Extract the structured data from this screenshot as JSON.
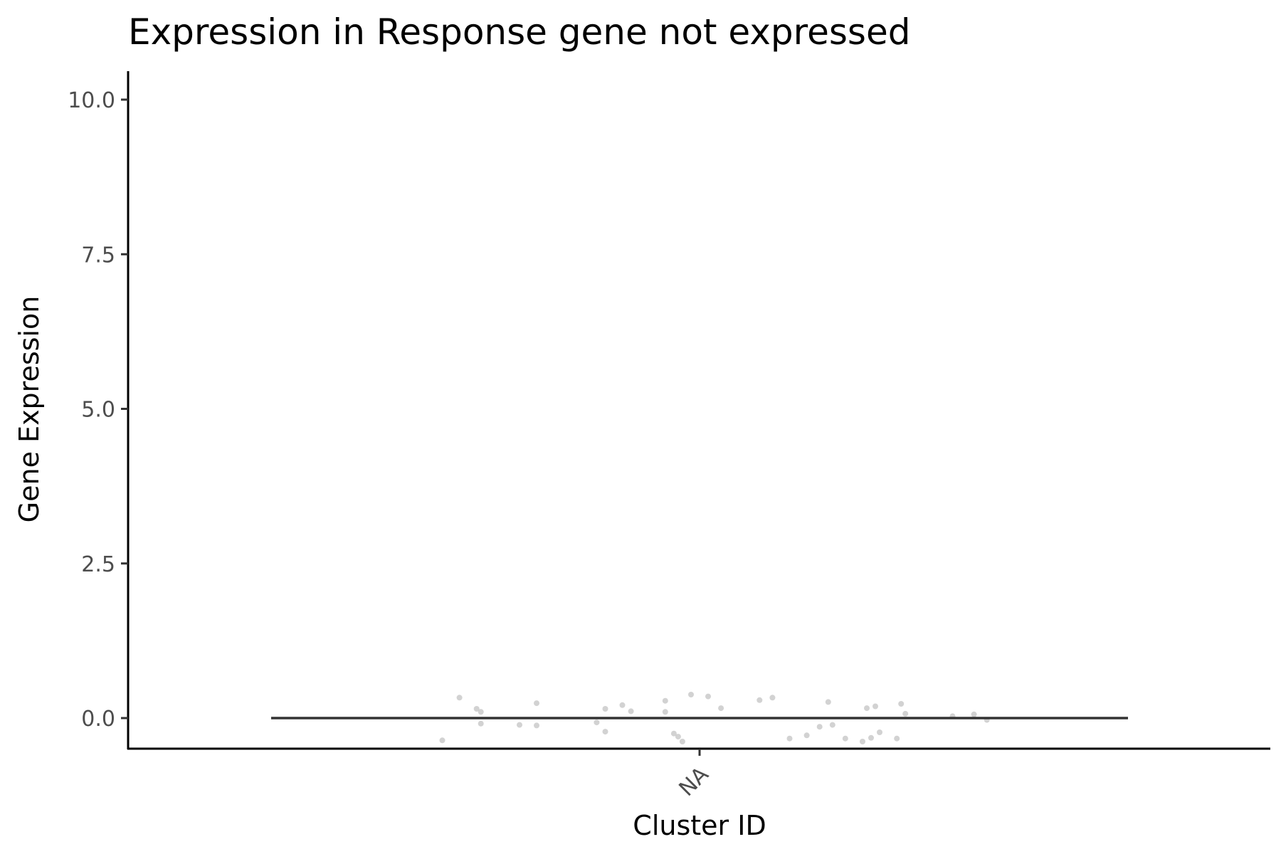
{
  "chart_data": {
    "type": "scatter",
    "title": "Expression in Response gene not expressed",
    "xlabel": "Cluster ID",
    "ylabel": "Gene Expression",
    "categories": [
      "NA"
    ],
    "ylim": [
      -0.5,
      10.5
    ],
    "yticks": [
      "0.0",
      "2.5",
      "5.0",
      "7.5",
      "10.0"
    ],
    "ytick_values": [
      0,
      2.5,
      5,
      7.5,
      10
    ],
    "grid": false,
    "legend": "none",
    "median_line": {
      "category": "NA",
      "value": 0
    },
    "point_color": "#bfbfbf",
    "line_color": "#333333",
    "points": [
      {
        "jitter": -0.3,
        "y": -0.36
      },
      {
        "jitter": -0.28,
        "y": 0.33
      },
      {
        "jitter": -0.26,
        "y": 0.15
      },
      {
        "jitter": -0.255,
        "y": 0.1
      },
      {
        "jitter": -0.255,
        "y": -0.09
      },
      {
        "jitter": -0.21,
        "y": -0.11
      },
      {
        "jitter": -0.19,
        "y": 0.24
      },
      {
        "jitter": -0.19,
        "y": -0.12
      },
      {
        "jitter": -0.12,
        "y": -0.07
      },
      {
        "jitter": -0.11,
        "y": 0.15
      },
      {
        "jitter": -0.11,
        "y": -0.22
      },
      {
        "jitter": -0.09,
        "y": 0.21
      },
      {
        "jitter": -0.08,
        "y": 0.11
      },
      {
        "jitter": -0.04,
        "y": 0.28
      },
      {
        "jitter": -0.04,
        "y": 0.1
      },
      {
        "jitter": -0.03,
        "y": -0.25
      },
      {
        "jitter": -0.025,
        "y": -0.3
      },
      {
        "jitter": -0.02,
        "y": -0.38
      },
      {
        "jitter": -0.01,
        "y": 0.38
      },
      {
        "jitter": 0.01,
        "y": 0.35
      },
      {
        "jitter": 0.025,
        "y": 0.16
      },
      {
        "jitter": 0.07,
        "y": 0.29
      },
      {
        "jitter": 0.085,
        "y": 0.33
      },
      {
        "jitter": 0.105,
        "y": -0.33
      },
      {
        "jitter": 0.125,
        "y": -0.28
      },
      {
        "jitter": 0.14,
        "y": -0.14
      },
      {
        "jitter": 0.15,
        "y": 0.26
      },
      {
        "jitter": 0.155,
        "y": -0.11
      },
      {
        "jitter": 0.17,
        "y": -0.33
      },
      {
        "jitter": 0.19,
        "y": -0.38
      },
      {
        "jitter": 0.195,
        "y": 0.16
      },
      {
        "jitter": 0.2,
        "y": -0.32
      },
      {
        "jitter": 0.205,
        "y": 0.19
      },
      {
        "jitter": 0.21,
        "y": -0.23
      },
      {
        "jitter": 0.23,
        "y": -0.33
      },
      {
        "jitter": 0.235,
        "y": 0.23
      },
      {
        "jitter": 0.24,
        "y": 0.07
      },
      {
        "jitter": 0.295,
        "y": 0.03
      },
      {
        "jitter": 0.32,
        "y": 0.06
      },
      {
        "jitter": 0.335,
        "y": -0.03
      }
    ]
  }
}
